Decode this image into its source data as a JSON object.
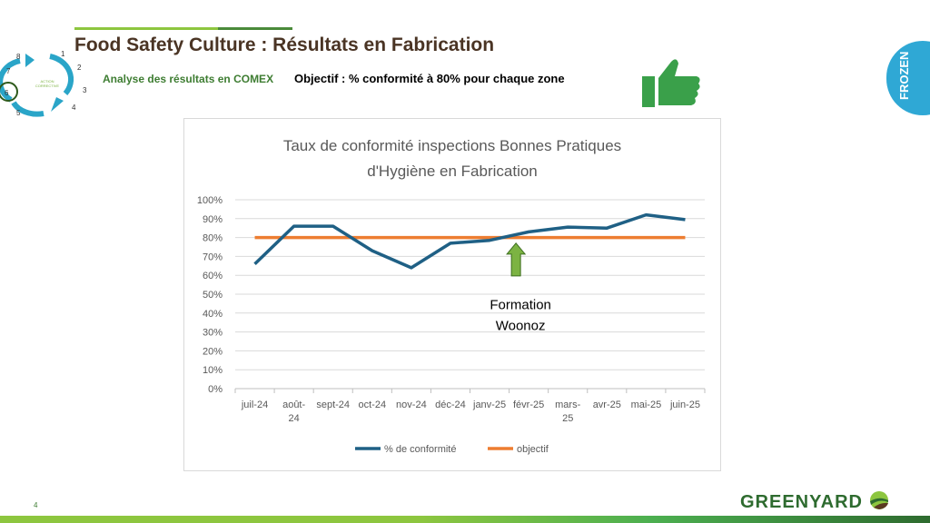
{
  "header": {
    "title": "Food Safety Culture : Résultats en Fabrication",
    "subtitle": "Analyse des résultats en COMEX",
    "objective": "Objectif : % conformité à 80% pour chaque zone"
  },
  "cycle": {
    "center": [
      "ACTION",
      "CORRECTIVE"
    ],
    "steps": [
      "1",
      "2",
      "3",
      "4",
      "5",
      "6",
      "7",
      "8"
    ],
    "highlighted_step": "6"
  },
  "tab": {
    "label": "FROZEN"
  },
  "footer": {
    "page_number": "4",
    "logo": "GREENYARD"
  },
  "colors": {
    "series": "#1f6085",
    "objective": "#ed7d31",
    "arrow": "#7cb342",
    "tab": "#2fa8d5"
  },
  "chart_data": {
    "type": "line",
    "title": [
      "Taux de conformité inspections Bonnes Pratiques",
      "d'Hygiène en Fabrication"
    ],
    "categories": [
      [
        "juil-24"
      ],
      [
        "août-",
        "24"
      ],
      [
        "sept-24"
      ],
      [
        "oct-24"
      ],
      [
        "nov-24"
      ],
      [
        "déc-24"
      ],
      [
        "janv-25"
      ],
      [
        "févr-25"
      ],
      [
        "mars-",
        "25"
      ],
      [
        "avr-25"
      ],
      [
        "mai-25"
      ],
      [
        "juin-25"
      ]
    ],
    "yticks": [
      "0%",
      "10%",
      "20%",
      "30%",
      "40%",
      "50%",
      "60%",
      "70%",
      "80%",
      "90%",
      "100%"
    ],
    "ylim": [
      0,
      100
    ],
    "series": [
      {
        "name": "% de conformité",
        "values": [
          66,
          86,
          86,
          73,
          64,
          77,
          78.5,
          83,
          85.5,
          85,
          92,
          89.5
        ]
      },
      {
        "name": "objectif",
        "values": [
          80,
          80,
          80,
          80,
          80,
          80,
          80,
          80,
          80,
          80,
          80,
          80
        ]
      }
    ],
    "annotation": {
      "text": [
        "Formation",
        "Woonoz"
      ],
      "category_index": 7
    },
    "legend": "bottom",
    "grid": true
  }
}
